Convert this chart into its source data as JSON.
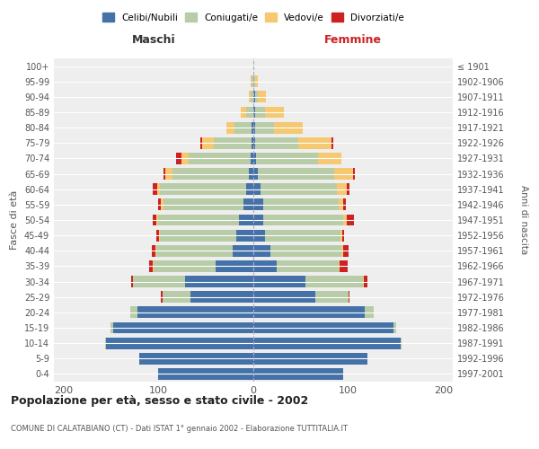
{
  "age_groups": [
    "0-4",
    "5-9",
    "10-14",
    "15-19",
    "20-24",
    "25-29",
    "30-34",
    "35-39",
    "40-44",
    "45-49",
    "50-54",
    "55-59",
    "60-64",
    "65-69",
    "70-74",
    "75-79",
    "80-84",
    "85-89",
    "90-94",
    "95-99",
    "100+"
  ],
  "birth_years": [
    "1997-2001",
    "1992-1996",
    "1987-1991",
    "1982-1986",
    "1977-1981",
    "1972-1976",
    "1967-1971",
    "1962-1966",
    "1957-1961",
    "1952-1956",
    "1947-1951",
    "1942-1946",
    "1937-1941",
    "1932-1936",
    "1927-1931",
    "1922-1926",
    "1917-1921",
    "1912-1916",
    "1907-1911",
    "1902-1906",
    "≤ 1901"
  ],
  "male": {
    "celibe": [
      100,
      120,
      155,
      148,
      122,
      66,
      72,
      40,
      22,
      18,
      15,
      10,
      8,
      5,
      3,
      2,
      2,
      0,
      0,
      0,
      0
    ],
    "coniugato": [
      0,
      0,
      1,
      2,
      8,
      30,
      55,
      65,
      80,
      80,
      85,
      85,
      90,
      80,
      65,
      40,
      18,
      8,
      3,
      2,
      0
    ],
    "vedovo": [
      0,
      0,
      0,
      0,
      0,
      0,
      0,
      1,
      1,
      1,
      2,
      2,
      3,
      8,
      8,
      12,
      8,
      5,
      2,
      1,
      0
    ],
    "divorziato": [
      0,
      0,
      0,
      0,
      0,
      1,
      2,
      4,
      4,
      3,
      4,
      3,
      5,
      2,
      5,
      2,
      0,
      0,
      0,
      0,
      0
    ]
  },
  "female": {
    "nubile": [
      95,
      120,
      155,
      148,
      117,
      65,
      55,
      25,
      18,
      12,
      10,
      10,
      8,
      5,
      3,
      2,
      2,
      2,
      2,
      0,
      0
    ],
    "coniugata": [
      0,
      0,
      1,
      2,
      10,
      35,
      60,
      65,
      75,
      80,
      85,
      80,
      80,
      80,
      65,
      45,
      20,
      10,
      3,
      2,
      0
    ],
    "vedova": [
      0,
      0,
      0,
      0,
      0,
      0,
      1,
      1,
      2,
      2,
      3,
      5,
      10,
      20,
      25,
      35,
      30,
      20,
      8,
      3,
      0
    ],
    "divorziata": [
      0,
      0,
      0,
      0,
      0,
      1,
      4,
      8,
      5,
      2,
      8,
      2,
      3,
      2,
      0,
      2,
      0,
      0,
      0,
      0,
      0
    ]
  },
  "colors": {
    "celibe": "#4472A8",
    "coniugato": "#B8CCA8",
    "vedovo": "#F5C871",
    "divorziato": "#CC2222"
  },
  "title": "Popolazione per età, sesso e stato civile - 2002",
  "subtitle": "COMUNE DI CALATABIANO (CT) - Dati ISTAT 1° gennaio 2002 - Elaborazione TUTTITALIA.IT",
  "xlabel_left": "Maschi",
  "xlabel_right": "Femmine",
  "ylabel_left": "Fasce di età",
  "ylabel_right": "Anni di nascita",
  "xlim": 210,
  "legend_labels": [
    "Celibi/Nubili",
    "Coniugati/e",
    "Vedovi/e",
    "Divorziati/e"
  ],
  "bg_color": "#ffffff",
  "plot_bg": "#eeeeee",
  "grid_color": "#dddddd",
  "bar_height": 0.75
}
